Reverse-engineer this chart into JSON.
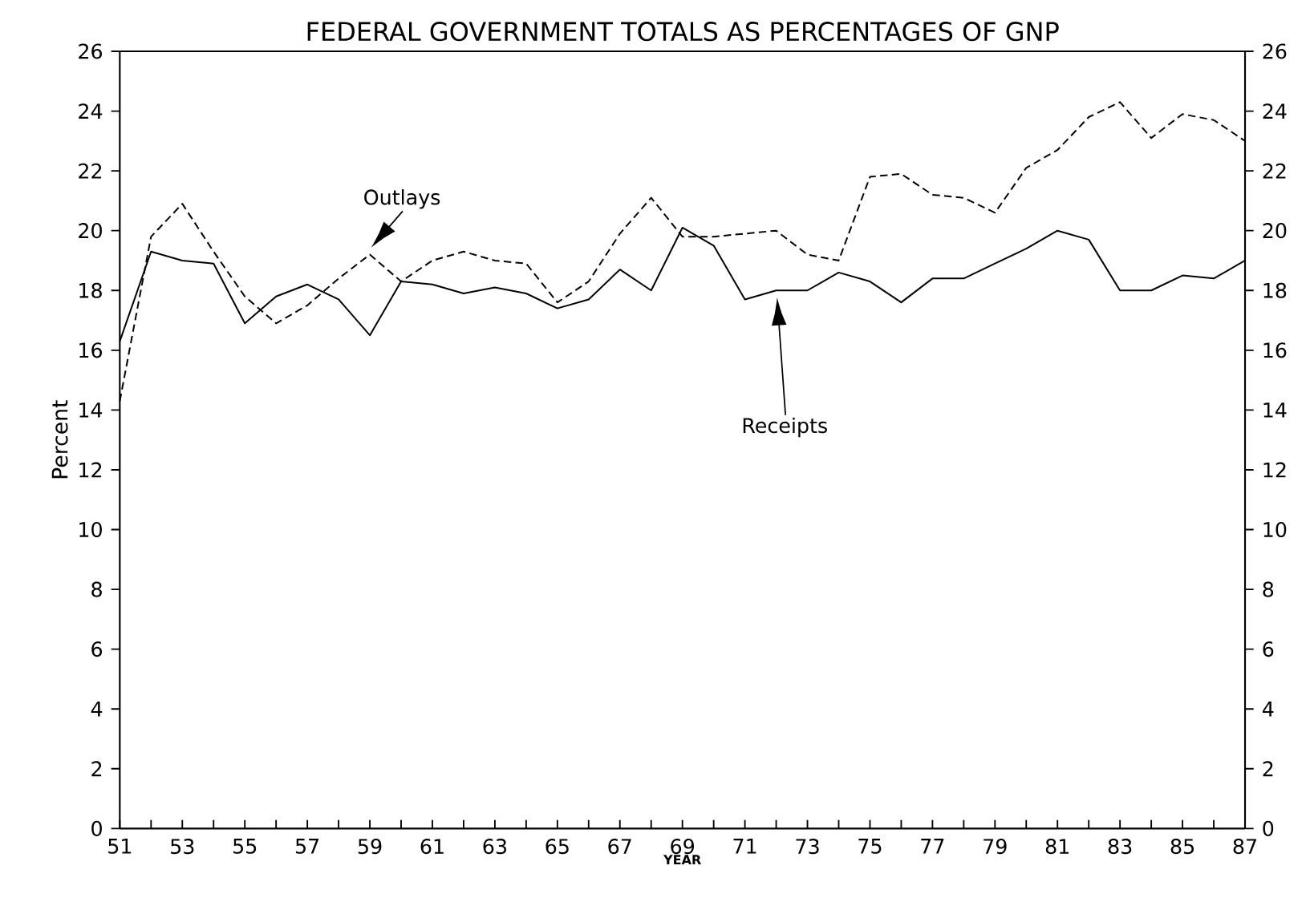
{
  "chart_data": {
    "type": "line",
    "title": "FEDERAL GOVERNMENT TOTALS AS PERCENTAGES OF GNP",
    "xlabel": "YEAR",
    "ylabel": "Percent",
    "x": [
      51,
      52,
      53,
      54,
      55,
      56,
      57,
      58,
      59,
      60,
      61,
      62,
      63,
      64,
      65,
      66,
      67,
      68,
      69,
      70,
      71,
      72,
      73,
      74,
      75,
      76,
      77,
      78,
      79,
      80,
      81,
      82,
      83,
      84,
      85,
      86,
      87
    ],
    "series": [
      {
        "name": "Outlays",
        "color": "#000000",
        "line_style": "dashed",
        "values": [
          14.3,
          19.8,
          20.9,
          19.3,
          17.8,
          16.9,
          17.5,
          18.4,
          19.2,
          18.3,
          19.0,
          19.3,
          19.0,
          18.9,
          17.6,
          18.3,
          19.9,
          21.1,
          19.8,
          19.8,
          19.9,
          20.0,
          19.2,
          19.0,
          21.8,
          21.9,
          21.2,
          21.1,
          20.6,
          22.1,
          22.7,
          23.8,
          24.3,
          23.1,
          23.9,
          23.7,
          23.0
        ]
      },
      {
        "name": "Receipts",
        "color": "#000000",
        "line_style": "solid",
        "values": [
          16.3,
          19.3,
          19.0,
          18.9,
          16.9,
          17.8,
          18.2,
          17.7,
          16.5,
          18.3,
          18.2,
          17.9,
          18.1,
          17.9,
          17.4,
          17.7,
          18.7,
          18.0,
          20.1,
          19.5,
          17.7,
          18.0,
          18.0,
          18.6,
          18.3,
          17.6,
          18.4,
          18.4,
          18.9,
          19.4,
          20.0,
          19.7,
          18.0,
          18.0,
          18.5,
          18.4,
          19.0
        ]
      }
    ],
    "marker": "none",
    "xlim": [
      51,
      87
    ],
    "xticks": [
      51,
      {
        "value": 52,
        "label": null
      },
      53,
      {
        "value": 54,
        "label": null
      },
      55,
      {
        "value": 56,
        "label": null
      },
      57,
      {
        "value": 58,
        "label": null
      },
      59,
      {
        "value": 60,
        "label": null
      },
      61,
      {
        "value": 62,
        "label": null
      },
      63,
      {
        "value": 64,
        "label": null
      },
      65,
      {
        "value": 66,
        "label": null
      },
      67,
      {
        "value": 68,
        "label": null
      },
      69,
      {
        "value": 70,
        "label": null
      },
      71,
      {
        "value": 72,
        "label": null
      },
      73,
      {
        "value": 74,
        "label": null
      },
      75,
      {
        "value": 76,
        "label": null
      },
      77,
      {
        "value": 78,
        "label": null
      },
      79,
      {
        "value": 80,
        "label": null
      },
      81,
      {
        "value": 82,
        "label": null
      },
      83,
      {
        "value": 84,
        "label": null
      },
      85,
      {
        "value": 86,
        "label": null
      },
      87
    ],
    "ylim": [
      0,
      26
    ],
    "yticks": [
      0,
      2,
      4,
      6,
      8,
      10,
      12,
      14,
      16,
      18,
      20,
      22,
      24,
      26
    ],
    "y2lim": [
      0,
      26
    ],
    "y2ticks": [
      0,
      2,
      4,
      6,
      8,
      10,
      12,
      14,
      16,
      18,
      20,
      22,
      24,
      26
    ]
  }
}
